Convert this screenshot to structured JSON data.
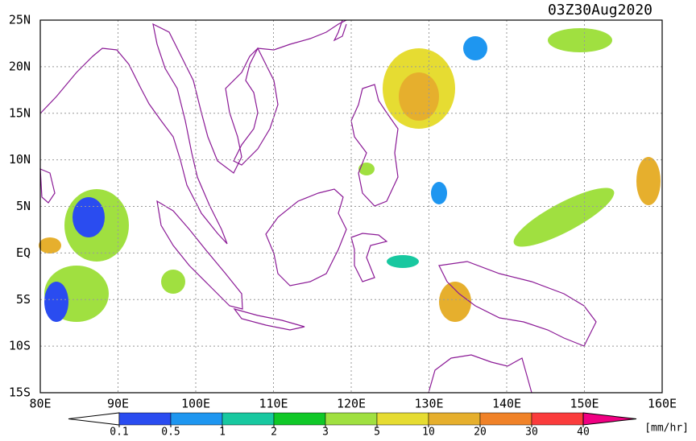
{
  "title": "03Z30Aug2020",
  "map": {
    "lon_ticks": [
      {
        "value": 80,
        "label": "80E"
      },
      {
        "value": 90,
        "label": "90E"
      },
      {
        "value": 100,
        "label": "100E"
      },
      {
        "value": 110,
        "label": "110E"
      },
      {
        "value": 120,
        "label": "120E"
      },
      {
        "value": 130,
        "label": "130E"
      },
      {
        "value": 140,
        "label": "140E"
      },
      {
        "value": 150,
        "label": "150E"
      },
      {
        "value": 160,
        "label": "160E"
      }
    ],
    "lat_ticks": [
      {
        "value": 25,
        "label": "25N"
      },
      {
        "value": 20,
        "label": "20N"
      },
      {
        "value": 15,
        "label": "15N"
      },
      {
        "value": 10,
        "label": "10N"
      },
      {
        "value": 5,
        "label": "5N"
      },
      {
        "value": 0,
        "label": "EQ"
      },
      {
        "value": -5,
        "label": "5S"
      },
      {
        "value": -10,
        "label": "10S"
      },
      {
        "value": -15,
        "label": "15S"
      }
    ],
    "grid": true
  },
  "colorbar": {
    "levels": [
      0.1,
      0.5,
      1,
      2,
      3,
      5,
      10,
      20,
      30,
      40
    ],
    "colors": [
      "#ffffff",
      "#2a4cf0",
      "#1e96f0",
      "#18c8a0",
      "#10c828",
      "#a0e040",
      "#e6dc32",
      "#e6af2d",
      "#f08228",
      "#fa3c3c",
      "#f00082"
    ],
    "unit": "[mm/hr]"
  }
}
